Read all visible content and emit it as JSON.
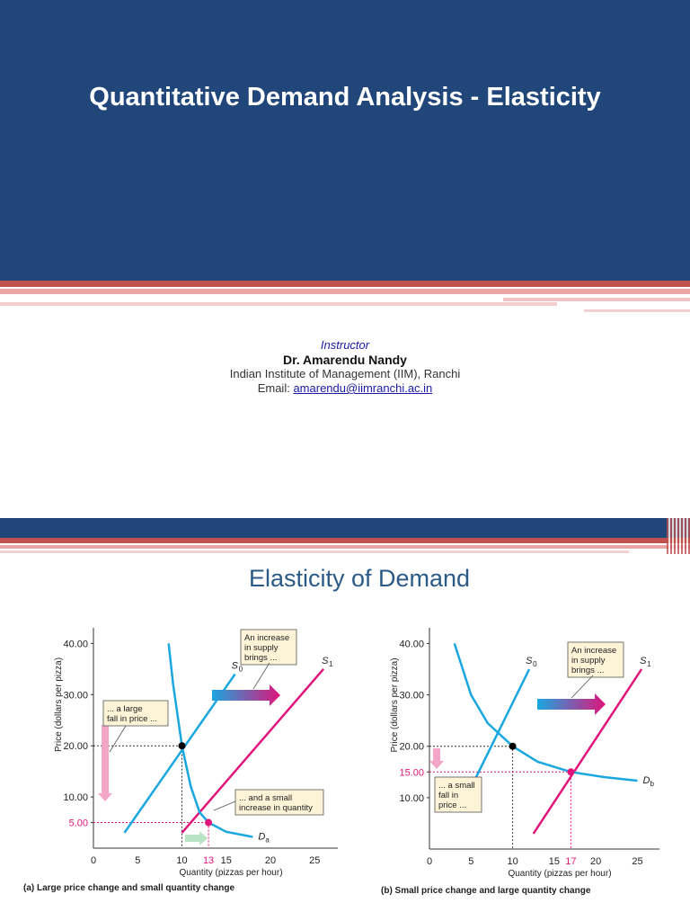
{
  "slide1": {
    "title": "Quantitative Demand Analysis - Elasticity",
    "instructor_label": "Instructor",
    "name": "Dr. Amarendu Nandy",
    "affiliation": "Indian Institute of Management (IIM), Ranchi",
    "email_label": "Email:",
    "email": "amarendu@iimranchi.ac.in"
  },
  "slide2": {
    "title": "Elasticity of Demand"
  },
  "colors": {
    "navy": "#214679",
    "red": "#c0504d",
    "cyan": "#1aa7e0",
    "magenta": "#e0147a",
    "pink": "#f4a6c8"
  },
  "chart_data": [
    {
      "type": "line",
      "panel_caption": "(a) Large price change and small quantity change",
      "xlabel": "Quantity (pizzas per hour)",
      "ylabel": "Price (dollars per pizza)",
      "xlim": [
        0,
        27
      ],
      "ylim": [
        0,
        42
      ],
      "x_ticks": [
        "0",
        "5",
        "10",
        "13",
        "15",
        "20",
        "25"
      ],
      "y_ticks": [
        "5.00",
        "10.00",
        "20.00",
        "30.00",
        "40.00"
      ],
      "series": [
        {
          "name": "S0",
          "points": [
            [
              3.5,
              3
            ],
            [
              16,
              34
            ]
          ]
        },
        {
          "name": "S1",
          "points": [
            [
              10,
              3
            ],
            [
              26,
              35
            ]
          ]
        },
        {
          "name": "Da",
          "points": [
            [
              8.5,
              40
            ],
            [
              9,
              32
            ],
            [
              10,
              20
            ],
            [
              11,
              12
            ],
            [
              12,
              7
            ],
            [
              13,
              5
            ],
            [
              15,
              3.2
            ],
            [
              18,
              2.2
            ]
          ]
        }
      ],
      "labels": {
        "s0": "S",
        "s0_sub": "0",
        "s1": "S",
        "s1_sub": "1",
        "d": "D",
        "d_sub": "a"
      },
      "equilibria": [
        [
          10,
          20
        ],
        [
          13,
          5
        ]
      ],
      "annotations": {
        "supply": [
          "An increase",
          "in supply",
          "brings ..."
        ],
        "price": [
          "... a large",
          "fall in price ..."
        ],
        "quantity": [
          "... and a small",
          "increase in quantity"
        ]
      }
    },
    {
      "type": "line",
      "panel_caption": "(b) Small price change and large quantity change",
      "xlabel": "Quantity (pizzas per hour)",
      "ylabel": "Price (dollars per pizza)",
      "xlim": [
        0,
        27
      ],
      "ylim": [
        0,
        42
      ],
      "x_ticks": [
        "0",
        "5",
        "10",
        "15",
        "17",
        "20",
        "25"
      ],
      "y_ticks": [
        "10.00",
        "15.00",
        "20.00",
        "30.00",
        "40.00"
      ],
      "series": [
        {
          "name": "S0",
          "points": [
            [
              5,
              12
            ],
            [
              12,
              35
            ]
          ]
        },
        {
          "name": "S1",
          "points": [
            [
              12.5,
              3
            ],
            [
              25.5,
              35
            ]
          ]
        },
        {
          "name": "Db",
          "points": [
            [
              3,
              40
            ],
            [
              5,
              30
            ],
            [
              7,
              24.5
            ],
            [
              10,
              20
            ],
            [
              13,
              17
            ],
            [
              17,
              15
            ],
            [
              21,
              14
            ],
            [
              25,
              13.3
            ]
          ]
        }
      ],
      "labels": {
        "s0": "S",
        "s0_sub": "0",
        "s1": "S",
        "s1_sub": "1",
        "d": "D",
        "d_sub": "b"
      },
      "equilibria": [
        [
          10,
          20
        ],
        [
          17,
          15
        ]
      ],
      "annotations": {
        "supply": [
          "An increase",
          "in supply",
          "brings ..."
        ],
        "price": [
          "... a small",
          "fall in",
          "price ..."
        ]
      }
    }
  ]
}
